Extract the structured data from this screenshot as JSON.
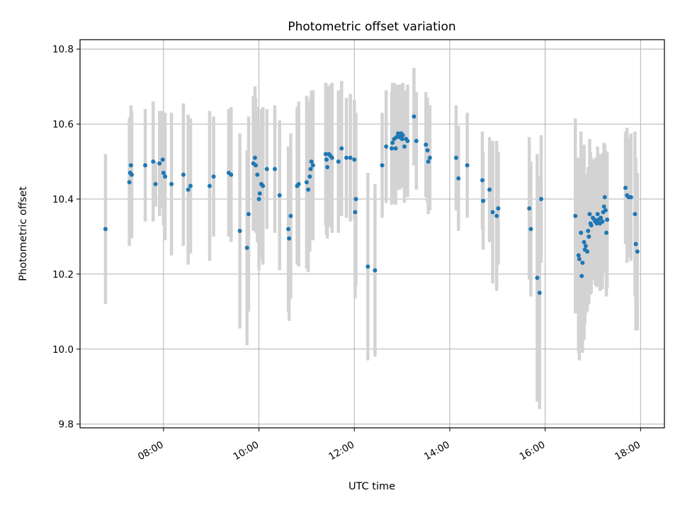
{
  "chart_data": {
    "type": "scatter",
    "title": "Photometric offset variation",
    "xlabel": "UTC time",
    "ylabel": "Photometric offset",
    "x_ticks": [
      "08:00",
      "10:00",
      "12:00",
      "14:00",
      "16:00",
      "18:00"
    ],
    "y_ticks": [
      "9.8",
      "10.0",
      "10.2",
      "10.4",
      "10.6",
      "10.8"
    ],
    "xlim": [
      "06:15",
      "18:30"
    ],
    "ylim": [
      9.79,
      10.825
    ],
    "grid": true,
    "colors": {
      "point": "#1f77b4",
      "errorbar": "#d3d3d3",
      "grid": "#b0b0b0"
    },
    "series": [
      {
        "marker": "point",
        "errorbar": "vertical",
        "points": [
          {
            "x": "06:47",
            "y": 10.32,
            "e": 0.2
          },
          {
            "x": "07:17",
            "y": 10.445,
            "e": 0.17
          },
          {
            "x": "07:18",
            "y": 10.47,
            "e": 0.15
          },
          {
            "x": "07:19",
            "y": 10.49,
            "e": 0.16
          },
          {
            "x": "07:20",
            "y": 10.465,
            "e": 0.17
          },
          {
            "x": "07:37",
            "y": 10.49,
            "e": 0.15
          },
          {
            "x": "07:47",
            "y": 10.5,
            "e": 0.16
          },
          {
            "x": "07:50",
            "y": 10.44,
            "e": 0.06
          },
          {
            "x": "07:55",
            "y": 10.495,
            "e": 0.14
          },
          {
            "x": "07:59",
            "y": 10.505,
            "e": 0.13
          },
          {
            "x": "08:00",
            "y": 10.47,
            "e": 0.14
          },
          {
            "x": "08:02",
            "y": 10.46,
            "e": 0.17
          },
          {
            "x": "08:10",
            "y": 10.44,
            "e": 0.19
          },
          {
            "x": "08:25",
            "y": 10.465,
            "e": 0.19
          },
          {
            "x": "08:31",
            "y": 10.425,
            "e": 0.2
          },
          {
            "x": "08:34",
            "y": 10.435,
            "e": 0.18
          },
          {
            "x": "08:58",
            "y": 10.435,
            "e": 0.2
          },
          {
            "x": "09:03",
            "y": 10.46,
            "e": 0.16
          },
          {
            "x": "09:22",
            "y": 10.47,
            "e": 0.17
          },
          {
            "x": "09:25",
            "y": 10.465,
            "e": 0.18
          },
          {
            "x": "09:36",
            "y": 10.315,
            "e": 0.26
          },
          {
            "x": "09:45",
            "y": 10.27,
            "e": 0.26
          },
          {
            "x": "09:47",
            "y": 10.36,
            "e": 0.26
          },
          {
            "x": "09:53",
            "y": 10.495,
            "e": 0.18
          },
          {
            "x": "09:55",
            "y": 10.51,
            "e": 0.19
          },
          {
            "x": "09:56",
            "y": 10.49,
            "e": 0.18
          },
          {
            "x": "09:58",
            "y": 10.465,
            "e": 0.18
          },
          {
            "x": "10:00",
            "y": 10.4,
            "e": 0.19
          },
          {
            "x": "10:01",
            "y": 10.415,
            "e": 0.17
          },
          {
            "x": "10:03",
            "y": 10.44,
            "e": 0.2
          },
          {
            "x": "10:05",
            "y": 10.435,
            "e": 0.21
          },
          {
            "x": "10:10",
            "y": 10.48,
            "e": 0.16
          },
          {
            "x": "10:20",
            "y": 10.48,
            "e": 0.17
          },
          {
            "x": "10:26",
            "y": 10.41,
            "e": 0.2
          },
          {
            "x": "10:37",
            "y": 10.32,
            "e": 0.22
          },
          {
            "x": "10:38",
            "y": 10.295,
            "e": 0.22
          },
          {
            "x": "10:40",
            "y": 10.355,
            "e": 0.22
          },
          {
            "x": "10:48",
            "y": 10.435,
            "e": 0.21
          },
          {
            "x": "10:50",
            "y": 10.44,
            "e": 0.22
          },
          {
            "x": "11:00",
            "y": 10.445,
            "e": 0.23
          },
          {
            "x": "11:02",
            "y": 10.425,
            "e": 0.22
          },
          {
            "x": "11:04",
            "y": 10.46,
            "e": 0.2
          },
          {
            "x": "11:05",
            "y": 10.48,
            "e": 0.19
          },
          {
            "x": "11:06",
            "y": 10.5,
            "e": 0.19
          },
          {
            "x": "11:08",
            "y": 10.49,
            "e": 0.2
          },
          {
            "x": "11:24",
            "y": 10.52,
            "e": 0.19
          },
          {
            "x": "11:25",
            "y": 10.505,
            "e": 0.2
          },
          {
            "x": "11:26",
            "y": 10.485,
            "e": 0.19
          },
          {
            "x": "11:28",
            "y": 10.52,
            "e": 0.18
          },
          {
            "x": "11:30",
            "y": 10.515,
            "e": 0.19
          },
          {
            "x": "11:32",
            "y": 10.51,
            "e": 0.2
          },
          {
            "x": "11:40",
            "y": 10.5,
            "e": 0.19
          },
          {
            "x": "11:44",
            "y": 10.535,
            "e": 0.18
          },
          {
            "x": "11:50",
            "y": 10.51,
            "e": 0.16
          },
          {
            "x": "11:55",
            "y": 10.51,
            "e": 0.17
          },
          {
            "x": "12:00",
            "y": 10.505,
            "e": 0.16
          },
          {
            "x": "12:01",
            "y": 10.365,
            "e": 0.23
          },
          {
            "x": "12:02",
            "y": 10.4,
            "e": 0.23
          },
          {
            "x": "12:17",
            "y": 10.22,
            "e": 0.25
          },
          {
            "x": "12:26",
            "y": 10.21,
            "e": 0.23
          },
          {
            "x": "12:35",
            "y": 10.49,
            "e": 0.14
          },
          {
            "x": "12:40",
            "y": 10.54,
            "e": 0.15
          },
          {
            "x": "12:47",
            "y": 10.535,
            "e": 0.15
          },
          {
            "x": "12:48",
            "y": 10.55,
            "e": 0.16
          },
          {
            "x": "12:50",
            "y": 10.56,
            "e": 0.15
          },
          {
            "x": "12:52",
            "y": 10.535,
            "e": 0.15
          },
          {
            "x": "12:53",
            "y": 10.565,
            "e": 0.14
          },
          {
            "x": "12:55",
            "y": 10.575,
            "e": 0.13
          },
          {
            "x": "12:57",
            "y": 10.565,
            "e": 0.14
          },
          {
            "x": "12:59",
            "y": 10.575,
            "e": 0.13
          },
          {
            "x": "13:00",
            "y": 10.56,
            "e": 0.12
          },
          {
            "x": "13:01",
            "y": 10.57,
            "e": 0.14
          },
          {
            "x": "13:03",
            "y": 10.54,
            "e": 0.15
          },
          {
            "x": "13:05",
            "y": 10.56,
            "e": 0.13
          },
          {
            "x": "13:07",
            "y": 10.555,
            "e": 0.15
          },
          {
            "x": "13:15",
            "y": 10.62,
            "e": 0.13
          },
          {
            "x": "13:18",
            "y": 10.555,
            "e": 0.13
          },
          {
            "x": "13:30",
            "y": 10.545,
            "e": 0.14
          },
          {
            "x": "13:32",
            "y": 10.53,
            "e": 0.14
          },
          {
            "x": "13:33",
            "y": 10.5,
            "e": 0.14
          },
          {
            "x": "13:35",
            "y": 10.51,
            "e": 0.14
          },
          {
            "x": "14:08",
            "y": 10.51,
            "e": 0.14
          },
          {
            "x": "14:11",
            "y": 10.455,
            "e": 0.14
          },
          {
            "x": "14:22",
            "y": 10.49,
            "e": 0.14
          },
          {
            "x": "14:41",
            "y": 10.45,
            "e": 0.13
          },
          {
            "x": "14:42",
            "y": 10.395,
            "e": 0.13
          },
          {
            "x": "14:50",
            "y": 10.425,
            "e": 0.14
          },
          {
            "x": "14:54",
            "y": 10.365,
            "e": 0.19
          },
          {
            "x": "14:59",
            "y": 10.355,
            "e": 0.2
          },
          {
            "x": "15:01",
            "y": 10.375,
            "e": 0.15
          },
          {
            "x": "15:40",
            "y": 10.375,
            "e": 0.19
          },
          {
            "x": "15:42",
            "y": 10.32,
            "e": 0.18
          },
          {
            "x": "15:50",
            "y": 10.19,
            "e": 0.33
          },
          {
            "x": "15:53",
            "y": 10.15,
            "e": 0.31
          },
          {
            "x": "15:55",
            "y": 10.4,
            "e": 0.17
          },
          {
            "x": "16:38",
            "y": 10.355,
            "e": 0.26
          },
          {
            "x": "16:42",
            "y": 10.25,
            "e": 0.26
          },
          {
            "x": "16:43",
            "y": 10.24,
            "e": 0.27
          },
          {
            "x": "16:45",
            "y": 10.31,
            "e": 0.27
          },
          {
            "x": "16:46",
            "y": 10.195,
            "e": 0.2
          },
          {
            "x": "16:47",
            "y": 10.23,
            "e": 0.24
          },
          {
            "x": "16:49",
            "y": 10.285,
            "e": 0.26
          },
          {
            "x": "16:50",
            "y": 10.265,
            "e": 0.2
          },
          {
            "x": "16:51",
            "y": 10.275,
            "e": 0.18
          },
          {
            "x": "16:53",
            "y": 10.26,
            "e": 0.16
          },
          {
            "x": "16:54",
            "y": 10.315,
            "e": 0.17
          },
          {
            "x": "16:55",
            "y": 10.3,
            "e": 0.18
          },
          {
            "x": "16:56",
            "y": 10.36,
            "e": 0.2
          },
          {
            "x": "16:57",
            "y": 10.335,
            "e": 0.19
          },
          {
            "x": "16:58",
            "y": 10.33,
            "e": 0.18
          },
          {
            "x": "17:00",
            "y": 10.35,
            "e": 0.15
          },
          {
            "x": "17:02",
            "y": 10.345,
            "e": 0.16
          },
          {
            "x": "17:03",
            "y": 10.34,
            "e": 0.17
          },
          {
            "x": "17:05",
            "y": 10.335,
            "e": 0.17
          },
          {
            "x": "17:06",
            "y": 10.36,
            "e": 0.18
          },
          {
            "x": "17:07",
            "y": 10.345,
            "e": 0.16
          },
          {
            "x": "17:09",
            "y": 10.335,
            "e": 0.18
          },
          {
            "x": "17:10",
            "y": 10.35,
            "e": 0.17
          },
          {
            "x": "17:12",
            "y": 10.34,
            "e": 0.18
          },
          {
            "x": "17:13",
            "y": 10.365,
            "e": 0.16
          },
          {
            "x": "17:14",
            "y": 10.38,
            "e": 0.17
          },
          {
            "x": "17:15",
            "y": 10.405,
            "e": 0.14
          },
          {
            "x": "17:16",
            "y": 10.37,
            "e": 0.16
          },
          {
            "x": "17:17",
            "y": 10.31,
            "e": 0.17
          },
          {
            "x": "17:18",
            "y": 10.345,
            "e": 0.18
          },
          {
            "x": "17:41",
            "y": 10.43,
            "e": 0.15
          },
          {
            "x": "17:43",
            "y": 10.41,
            "e": 0.18
          },
          {
            "x": "17:45",
            "y": 10.405,
            "e": 0.16
          },
          {
            "x": "17:48",
            "y": 10.405,
            "e": 0.17
          },
          {
            "x": "17:53",
            "y": 10.36,
            "e": 0.22
          },
          {
            "x": "17:54",
            "y": 10.28,
            "e": 0.23
          },
          {
            "x": "17:56",
            "y": 10.26,
            "e": 0.21
          }
        ]
      }
    ]
  }
}
